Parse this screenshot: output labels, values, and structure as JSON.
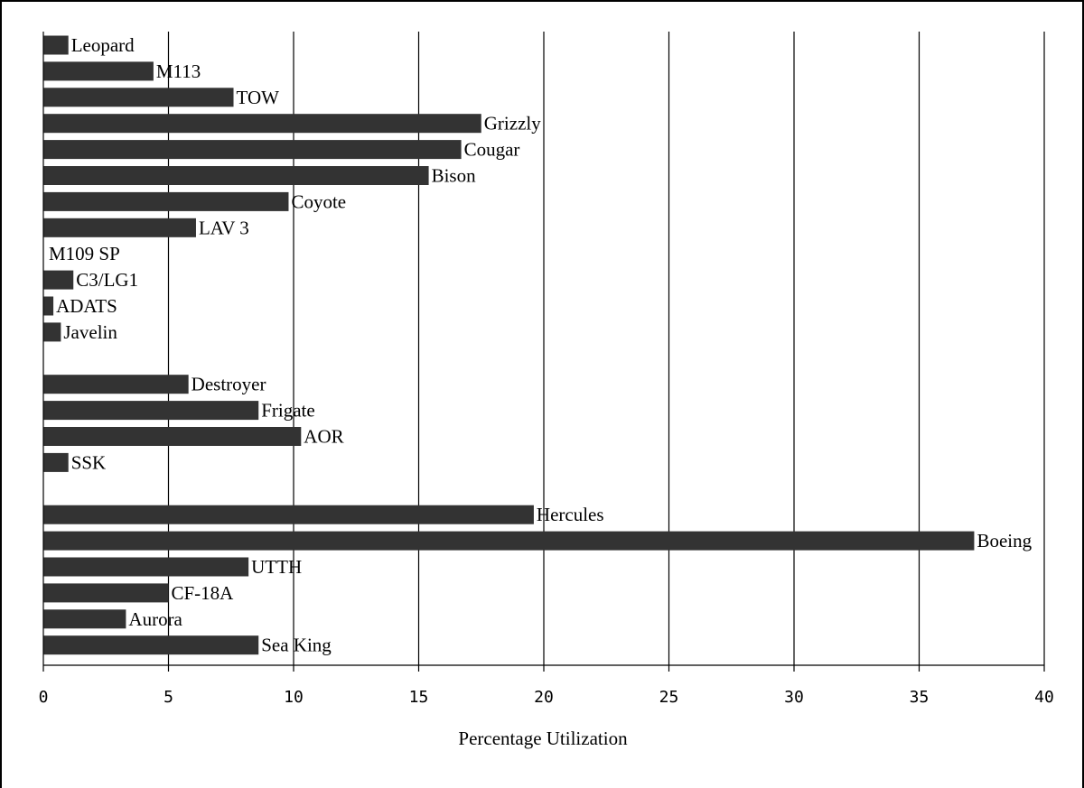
{
  "chart_data": {
    "type": "bar",
    "orientation": "horizontal",
    "xlabel": "Percentage Utilization",
    "ylabel": "",
    "xlim": [
      0,
      40
    ],
    "xticks": [
      "0",
      "5",
      "10",
      "15",
      "20",
      "25",
      "30",
      "35",
      "40"
    ],
    "grid": "vertical",
    "bar_color": "#333333",
    "categories": [
      "Leopard",
      "M113",
      "TOW",
      "Grizzly",
      "Cougar",
      "Bison",
      "Coyote",
      "LAV 3",
      "M109 SP",
      "C3/LG1",
      "ADATS",
      "Javelin",
      "Destroyer",
      "Frigate",
      "AOR",
      "SSK",
      "Hercules",
      "Boeing",
      "UTTH",
      "CF-18A",
      "Aurora",
      "Sea King"
    ],
    "values": [
      1.0,
      4.4,
      7.6,
      17.5,
      16.7,
      15.4,
      9.8,
      6.1,
      0.0,
      1.2,
      0.4,
      0.7,
      5.8,
      8.6,
      10.3,
      1.0,
      19.6,
      37.2,
      8.2,
      5.0,
      3.3,
      8.6
    ]
  }
}
